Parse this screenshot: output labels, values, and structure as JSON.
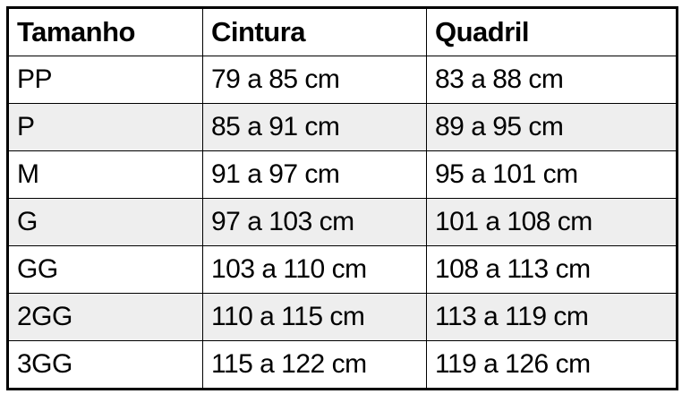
{
  "chart_data": {
    "type": "table",
    "columns": [
      "Tamanho",
      "Cintura",
      "Quadril"
    ],
    "rows": [
      [
        "PP",
        "79 a 85 cm",
        "83 a 88 cm"
      ],
      [
        "P",
        "85 a 91 cm",
        "89 a 95 cm"
      ],
      [
        "M",
        "91 a 97 cm",
        "95 a 101 cm"
      ],
      [
        "G",
        "97 a 103 cm",
        "101 a 108 cm"
      ],
      [
        "GG",
        "103 a 110 cm",
        "108 a 113 cm"
      ],
      [
        "2GG",
        "110 a 115 cm",
        "113 a 119 cm"
      ],
      [
        "3GG",
        "115 a 122 cm",
        "119 a 126 cm"
      ]
    ],
    "layout": {
      "grid": "on",
      "striped_rows": [
        "P",
        "G",
        "2GG"
      ]
    }
  },
  "colors": {
    "stripe": "#eeeeee",
    "border": "#000000",
    "text": "#000000",
    "background": "#ffffff"
  }
}
